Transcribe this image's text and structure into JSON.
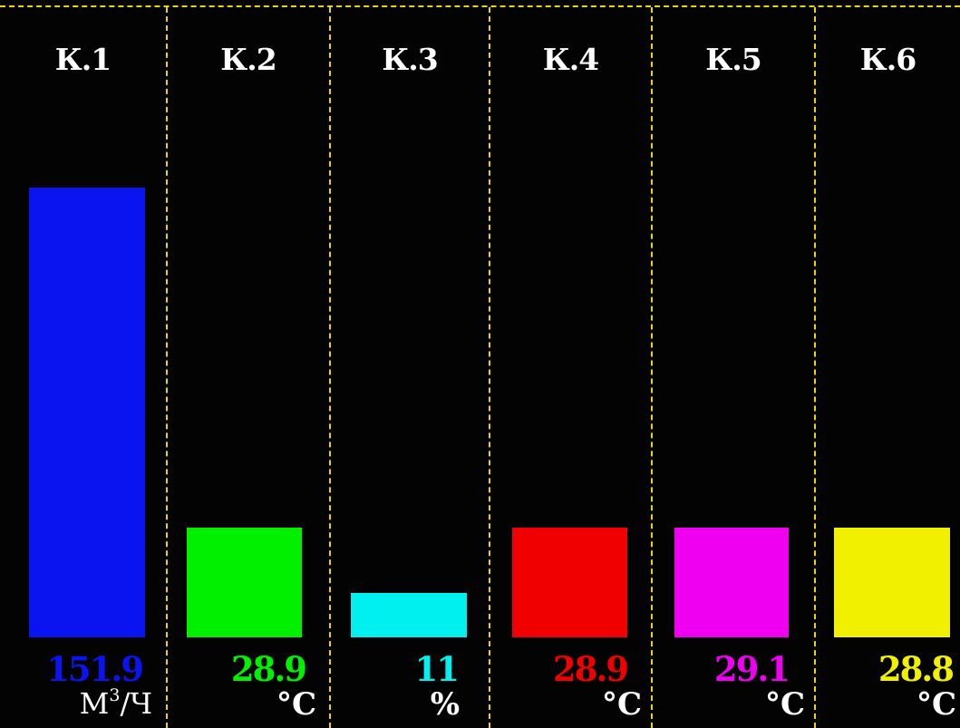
{
  "chart_data": {
    "type": "bar",
    "categories": [
      "К.1",
      "К.2",
      "К.3",
      "К.4",
      "К.5",
      "К.6"
    ],
    "values": [
      151.9,
      28.9,
      11,
      28.9,
      29.1,
      28.8
    ],
    "units": [
      "М³/Ч",
      "°С",
      "%",
      "°С",
      "°С",
      "°С"
    ],
    "bar_fill_fraction": [
      1.0,
      0.243,
      0.098,
      0.243,
      0.243,
      0.243
    ],
    "colors": [
      "#0a14f0",
      "#00f000",
      "#00f0f0",
      "#f00000",
      "#f000f0",
      "#f0f000"
    ],
    "grid": "dashed yellow channel separators",
    "legend": "none"
  },
  "channels": [
    {
      "label": "К.1",
      "value": "151.9",
      "unit_base": "М",
      "unit_sup": "3",
      "unit_tail": "/Ч"
    },
    {
      "label": "К.2",
      "value": "28.9",
      "unit": "°С"
    },
    {
      "label": "К.3",
      "value": "11",
      "unit": "%"
    },
    {
      "label": "К.4",
      "value": "28.9",
      "unit": "°С"
    },
    {
      "label": "К.5",
      "value": "29.1",
      "unit": "°С"
    },
    {
      "label": "К.6",
      "value": "28.8",
      "unit": "°С"
    }
  ]
}
